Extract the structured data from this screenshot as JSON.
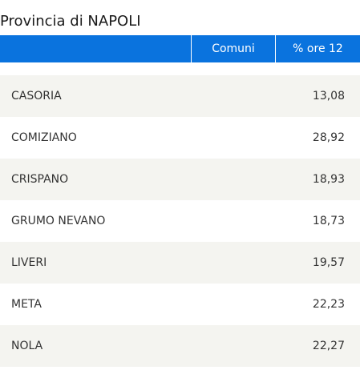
{
  "title": "Provincia di NAPOLI",
  "header": {
    "col_comuni": "Comuni",
    "col_pct": "% ore 12"
  },
  "colors": {
    "header_bg": "#0a73de",
    "row_alt_bg": "#f4f4f0"
  },
  "rows": [
    {
      "comune": "CASORIA",
      "pct": "13,08"
    },
    {
      "comune": "COMIZIANO",
      "pct": "28,92"
    },
    {
      "comune": "CRISPANO",
      "pct": "18,93"
    },
    {
      "comune": "GRUMO NEVANO",
      "pct": "18,73"
    },
    {
      "comune": "LIVERI",
      "pct": "19,57"
    },
    {
      "comune": "META",
      "pct": "22,23"
    },
    {
      "comune": "NOLA",
      "pct": "22,27"
    }
  ]
}
